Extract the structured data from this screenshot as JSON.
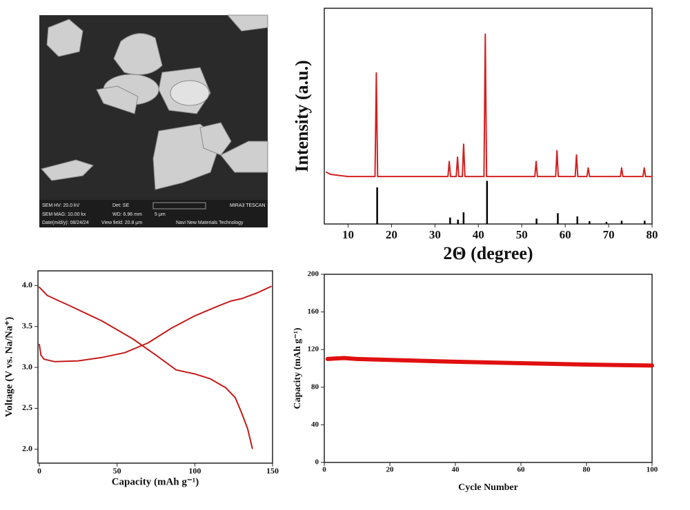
{
  "sem_image": {
    "labels": [
      "SEM HV: 20.0 kV",
      "Det: SE",
      "MIRA3 TESCAN",
      "SEM MAG: 10.00 kx",
      "WD: 6.96 mm",
      "5 μm",
      "Date(m/d/y): 08/24/24",
      "View field: 20.8 μm",
      "Navi New Materials Technology"
    ]
  },
  "chart_data": [
    {
      "type": "line",
      "xlabel": "2Θ (degree)",
      "ylabel": "Intensity (a.u.)",
      "xlim": [
        5,
        80
      ],
      "xticks": [
        10,
        20,
        30,
        40,
        50,
        60,
        70,
        80
      ],
      "ylim": [
        0,
        100
      ],
      "series": [
        {
          "type": "line",
          "color": "#d42020",
          "x": [
            5,
            6,
            8,
            10,
            16.2,
            16.5,
            16.8,
            33.0,
            33.3,
            33.6,
            34.9,
            35.2,
            35.5,
            36.3,
            36.6,
            36.9,
            41.3,
            41.6,
            41.9,
            53.0,
            53.3,
            53.6,
            57.8,
            58.1,
            58.4,
            62.3,
            62.6,
            62.9,
            65.0,
            65.3,
            65.6,
            72.7,
            73.0,
            73.3,
            77.9,
            78.2,
            78.5,
            80
          ],
          "values": [
            24,
            23,
            22.5,
            22,
            22,
            70,
            22,
            22,
            29,
            22,
            22,
            31,
            22,
            22,
            37,
            22,
            22,
            88,
            22,
            22,
            29,
            22,
            22,
            34,
            22,
            22,
            32,
            22,
            22,
            26,
            22,
            22,
            26,
            22,
            22,
            26,
            22,
            22
          ]
        },
        {
          "type": "stem",
          "color": "#000000",
          "x": [
            16.7,
            33.5,
            35.3,
            36.6,
            42.0,
            53.4,
            58.3,
            62.8,
            65.6,
            69.5,
            73.0,
            78.3
          ],
          "values": [
            17,
            3,
            2,
            5.4,
            20,
            2.5,
            5,
            3.5,
            1.3,
            1,
            1.5,
            1.5
          ]
        }
      ]
    },
    {
      "type": "line",
      "xlabel": "Capacity (mAh g⁻¹)",
      "ylabel": "Voltage (V vs. Na/Na⁺)",
      "xlim": [
        0,
        150
      ],
      "xticks": [
        0,
        50,
        100,
        150
      ],
      "ylim": [
        1.83,
        4.18
      ],
      "yticks": [
        {
          "value": 2,
          "label": "2.0"
        },
        2.5,
        {
          "value": 3,
          "label": "3.0"
        },
        3.5,
        {
          "value": 4,
          "label": "4.0"
        }
      ],
      "series": [
        {
          "type": "line",
          "color": "#c41a1a",
          "x": [
            0,
            1,
            3,
            10,
            25,
            40,
            55,
            70,
            85,
            100,
            115,
            123,
            130,
            140,
            149
          ],
          "values": [
            3.28,
            3.15,
            3.1,
            3.07,
            3.08,
            3.12,
            3.18,
            3.3,
            3.48,
            3.63,
            3.75,
            3.81,
            3.84,
            3.91,
            3.99
          ]
        },
        {
          "type": "line",
          "color": "#c41a1a",
          "x": [
            0,
            5,
            20,
            40,
            60,
            75,
            88,
            100,
            110,
            120,
            126,
            130,
            134,
            137
          ],
          "values": [
            3.98,
            3.88,
            3.75,
            3.57,
            3.35,
            3.15,
            2.97,
            2.92,
            2.86,
            2.75,
            2.63,
            2.45,
            2.25,
            2.01
          ]
        }
      ]
    },
    {
      "type": "line",
      "xlabel": "Cycle Number",
      "ylabel": "Capacity (mAh g⁻¹)",
      "xlim": [
        0,
        100
      ],
      "xticks": [
        0,
        20,
        40,
        60,
        80,
        100
      ],
      "ylim": [
        0,
        200
      ],
      "yticks": [
        0,
        40,
        80,
        120,
        160,
        200
      ],
      "series": [
        {
          "type": "line",
          "color": "#e01010",
          "x": [
            1,
            3,
            6,
            10,
            20,
            40,
            60,
            80,
            100
          ],
          "values": [
            110,
            110.5,
            111,
            110,
            109,
            107,
            105.5,
            104,
            103
          ]
        }
      ]
    }
  ]
}
